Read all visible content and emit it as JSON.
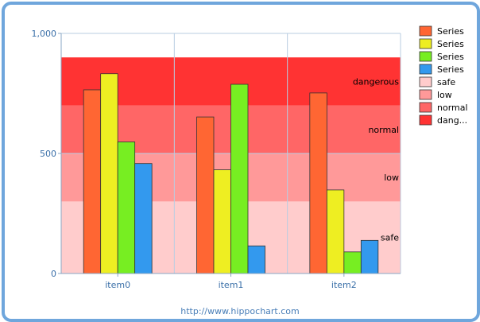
{
  "chart_data": {
    "type": "bar",
    "categories": [
      "item0",
      "item1",
      "item2"
    ],
    "ylim": [
      0,
      1000
    ],
    "yticks": [
      0,
      500,
      1000
    ],
    "ytick_labels": [
      "0",
      "500",
      "1,000"
    ],
    "grid": true,
    "legend_position": "right",
    "series": [
      {
        "name": "Series",
        "color": "#ff6633",
        "values": [
          765,
          652,
          752
        ]
      },
      {
        "name": "Series",
        "color": "#eeee22",
        "values": [
          832,
          432,
          348
        ]
      },
      {
        "name": "Series",
        "color": "#77ee22",
        "values": [
          548,
          788,
          90
        ]
      },
      {
        "name": "Series",
        "color": "#3399ee",
        "values": [
          458,
          115,
          138
        ]
      }
    ],
    "bands": [
      {
        "name": "safe",
        "label": "safe",
        "from": 0,
        "to": 300,
        "color": "#ffcccc"
      },
      {
        "name": "low",
        "label": "low",
        "from": 300,
        "to": 500,
        "color": "#ff9999"
      },
      {
        "name": "normal",
        "label": "normal",
        "from": 500,
        "to": 700,
        "color": "#ff6666"
      },
      {
        "name": "dang...",
        "label": "dangerous",
        "from": 700,
        "to": 900,
        "color": "#ff3333"
      }
    ]
  },
  "footer": "http://www.hippochart.com"
}
